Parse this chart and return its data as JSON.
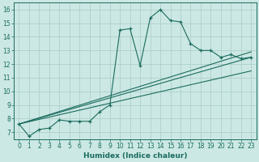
{
  "xlabel": "Humidex (Indice chaleur)",
  "ylabel": "",
  "bg_color": "#cce8e4",
  "grid_color": "#aed0cc",
  "line_color": "#1a6b5e",
  "xlim": [
    -0.5,
    23.5
  ],
  "ylim": [
    6.5,
    16.5
  ],
  "yticks": [
    7,
    8,
    9,
    10,
    11,
    12,
    13,
    14,
    15,
    16
  ],
  "xticks": [
    0,
    1,
    2,
    3,
    4,
    5,
    6,
    7,
    8,
    9,
    10,
    11,
    12,
    13,
    14,
    15,
    16,
    17,
    18,
    19,
    20,
    21,
    22,
    23
  ],
  "curve1_x": [
    0,
    1,
    2,
    3,
    4,
    5,
    6,
    7,
    8,
    9,
    10,
    11,
    12,
    13,
    14,
    15,
    16,
    17,
    18,
    19,
    20,
    21,
    22,
    23
  ],
  "curve1_y": [
    7.6,
    6.7,
    7.2,
    7.3,
    7.9,
    7.8,
    7.8,
    7.8,
    8.5,
    9.0,
    14.5,
    14.6,
    11.9,
    15.4,
    16.0,
    15.2,
    15.1,
    13.5,
    13.0,
    13.0,
    12.5,
    12.7,
    12.4,
    12.5
  ],
  "line1_x": [
    0,
    23
  ],
  "line1_y": [
    7.6,
    12.5
  ],
  "line2_x": [
    0,
    23
  ],
  "line2_y": [
    7.6,
    12.9
  ],
  "line3_x": [
    0,
    23
  ],
  "line3_y": [
    7.6,
    11.5
  ]
}
